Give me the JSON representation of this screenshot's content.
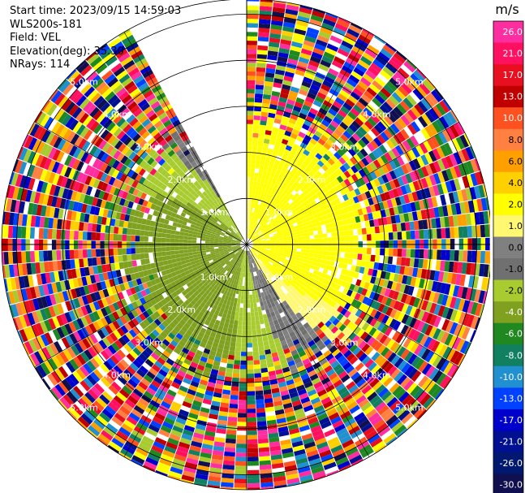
{
  "header": {
    "start_time": "Start time: 2023/09/15 14:59:03",
    "instrument": "WLS200s-181",
    "field": "Field: VEL",
    "elevation": "Elevation(deg): 35.30",
    "nrays": "NRays: 114"
  },
  "range_rings": [
    "1.0km",
    "2.0km",
    "3.0km",
    "4.0km",
    "5.0km"
  ],
  "colorbar": {
    "unit": "m/s",
    "ticks": [
      "26.0",
      "21.0",
      "17.0",
      "13.0",
      "10.0",
      "8.0",
      "6.0",
      "4.0",
      "2.0",
      "1.0",
      "0.0",
      "-1.0",
      "-2.0",
      "-4.0",
      "-6.0",
      "-8.0",
      "-10.0",
      "-13.0",
      "-17.0",
      "-21.0",
      "-26.0",
      "-30.0"
    ],
    "colors": [
      "#ff2ea0",
      "#ff1060",
      "#e81020",
      "#c00000",
      "#ff5020",
      "#ff8040",
      "#ffa000",
      "#ffd000",
      "#ffff00",
      "#fff870",
      "#808080",
      "#707070",
      "#a8cc30",
      "#80a020",
      "#208820",
      "#108060",
      "#2090d0",
      "#0040ff",
      "#0000cc",
      "#001090",
      "#001870",
      "#101050"
    ]
  }
}
